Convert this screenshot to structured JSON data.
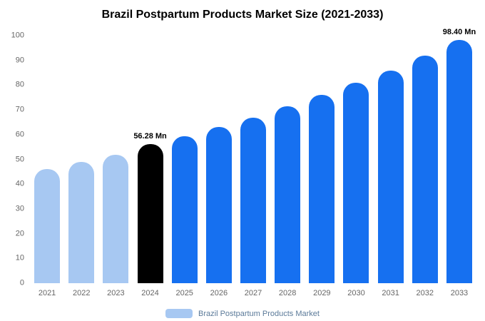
{
  "title": "Brazil Postpartum Products Market Size (2021-2033)",
  "colors": {
    "light_blue": "#a7c8f2",
    "primary_blue": "#1670f0",
    "highlight_black": "#000000",
    "axis_text": "#666666",
    "legend_text": "#5b7a99"
  },
  "chart_data": {
    "type": "bar",
    "title": "Brazil Postpartum Products Market Size (2021-2033)",
    "xlabel": "",
    "ylabel": "",
    "ylim": [
      0,
      100
    ],
    "yticks": [
      0,
      10,
      20,
      30,
      40,
      50,
      60,
      70,
      80,
      90,
      100
    ],
    "grid": false,
    "legend_position": "bottom",
    "categories": [
      "2021",
      "2022",
      "2023",
      "2024",
      "2025",
      "2026",
      "2027",
      "2028",
      "2029",
      "2030",
      "2031",
      "2032",
      "2033"
    ],
    "values": [
      46,
      49,
      52,
      56.28,
      59.5,
      63,
      67,
      71.5,
      76,
      81,
      86,
      92,
      98.4
    ],
    "bar_roles": [
      "light",
      "light",
      "light",
      "black",
      "blue",
      "blue",
      "blue",
      "blue",
      "blue",
      "blue",
      "blue",
      "blue",
      "blue"
    ],
    "annotations": [
      {
        "index": 3,
        "text": "56.28 Mn"
      },
      {
        "index": 12,
        "text": "98.40 Mn"
      }
    ],
    "legend": [
      {
        "label": "Brazil Postpartum Products Market",
        "color": "#a7c8f2"
      }
    ]
  }
}
